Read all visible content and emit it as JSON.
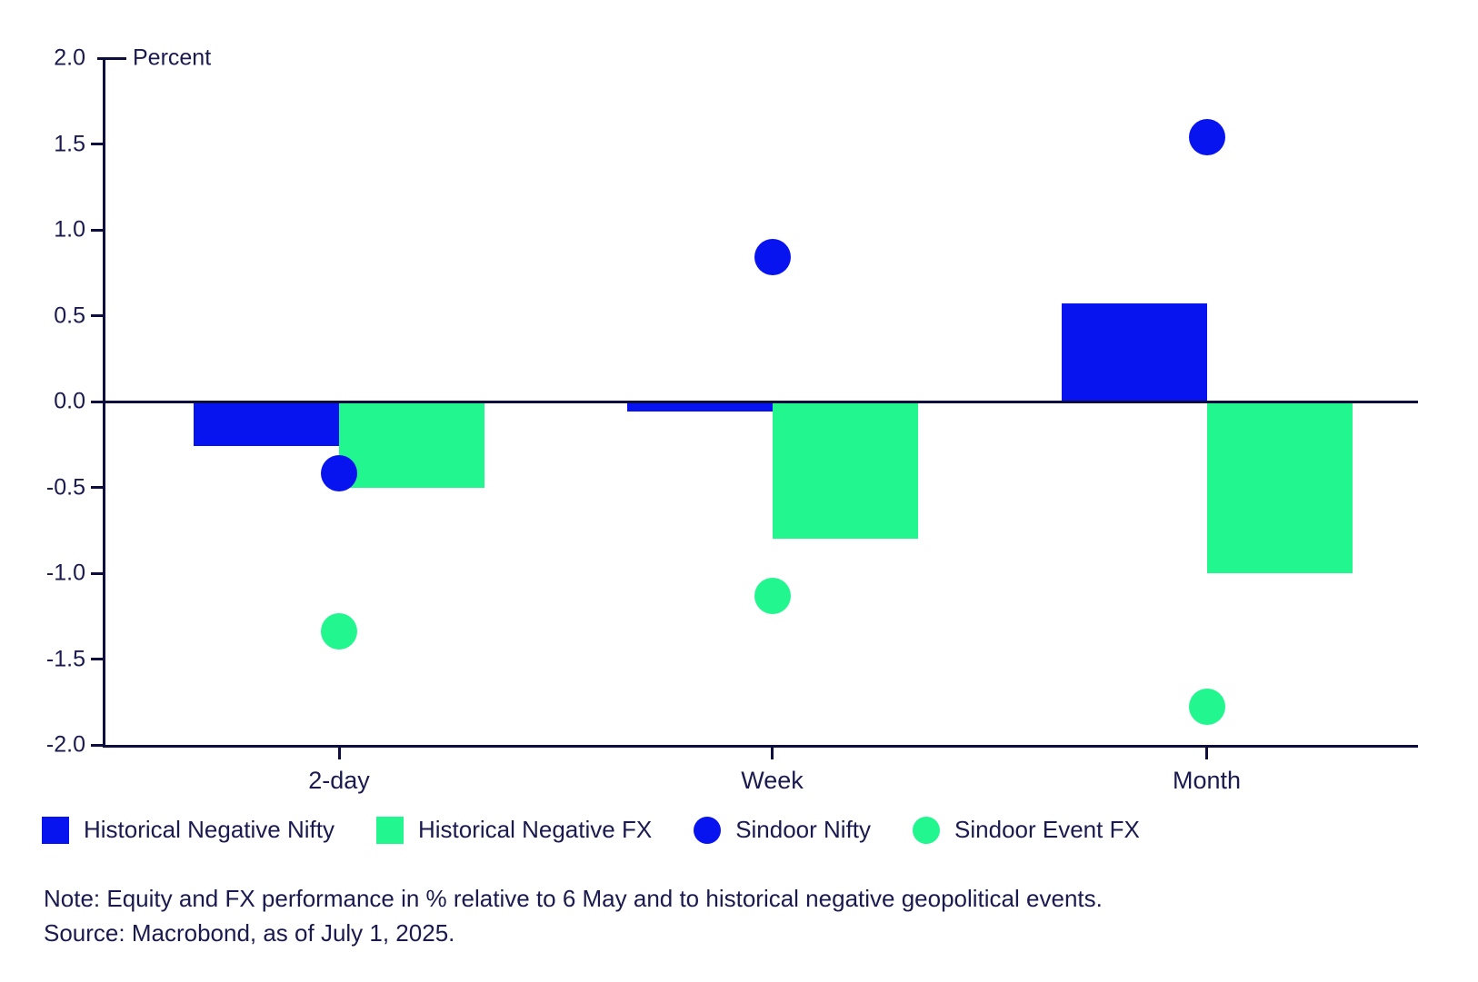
{
  "chart_data": {
    "type": "bar",
    "title": "",
    "ylabel": "Percent",
    "xlabel": "",
    "ylim": [
      -2.0,
      2.0
    ],
    "yticks": [
      "2.0",
      "1.5",
      "1.0",
      "0.5",
      "0.0",
      "-0.5",
      "-1.0",
      "-1.5",
      "-2.0"
    ],
    "categories": [
      "2-day",
      "Week",
      "Month"
    ],
    "series": [
      {
        "name": "Historical Negative Nifty",
        "render": "bar",
        "color": "#0814f0",
        "values": [
          -0.26,
          -0.06,
          0.57
        ]
      },
      {
        "name": "Historical Negative FX",
        "render": "bar",
        "color": "#21f78e",
        "values": [
          -0.5,
          -0.8,
          -1.0
        ]
      },
      {
        "name": "Sindoor Nifty",
        "render": "scatter",
        "color": "#0814f0",
        "values": [
          -0.42,
          0.84,
          1.54
        ]
      },
      {
        "name": "Sindoor Event FX",
        "render": "scatter",
        "color": "#21f78e",
        "values": [
          -1.34,
          -1.13,
          -1.78
        ]
      }
    ],
    "grid": false,
    "legend_position": "bottom",
    "colors": {
      "nifty_blue": "#0814f0",
      "fx_green": "#21f78e",
      "axis_navy": "#0e0e3e",
      "text_navy": "#1a1a4f"
    }
  },
  "notes": {
    "note": "Note: Equity and FX performance in % relative to 6 May and to historical negative geopolitical events.",
    "source": "Source: Macrobond, as of July 1, 2025."
  }
}
